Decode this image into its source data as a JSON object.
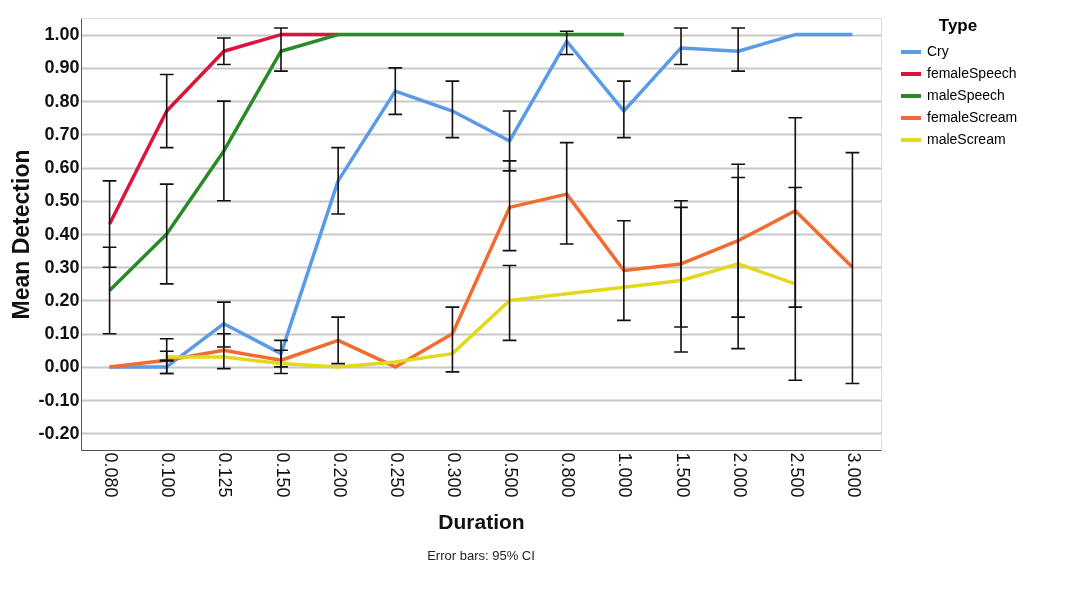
{
  "chart_data": {
    "type": "line",
    "xlabel": "Duration",
    "ylabel": "Mean Detection",
    "legend_title": "Type",
    "legend": "top right",
    "grid": "y",
    "categories": [
      "0.080",
      "0.100",
      "0.125",
      "0.150",
      "0.200",
      "0.250",
      "0.300",
      "0.500",
      "0.800",
      "1.000",
      "1.500",
      "2.000",
      "2.500",
      "3.000"
    ],
    "ylim": [
      -0.25,
      1.05
    ],
    "yticks": [
      {
        "value": -0.2,
        "label": "-0.20"
      },
      {
        "value": -0.1,
        "label": "-0.10"
      },
      {
        "value": 0,
        "label": "0.00"
      },
      {
        "value": 0.1,
        "label": "0.10"
      },
      {
        "value": 0.2,
        "label": "0.20"
      },
      {
        "value": 0.3,
        "label": "0.30"
      },
      {
        "value": 0.4,
        "label": "0.40"
      },
      {
        "value": 0.5,
        "label": "0.50"
      },
      {
        "value": 0.6,
        "label": "0.60"
      },
      {
        "value": 0.7,
        "label": "0.70"
      },
      {
        "value": 0.8,
        "label": "0.80"
      },
      {
        "value": 0.9,
        "label": "0.90"
      },
      {
        "value": 1,
        "label": "1.00"
      }
    ],
    "series": [
      {
        "name": "Cry",
        "color": "#5b9be6",
        "values": [
          0.0,
          0.0,
          0.13,
          0.04,
          0.56,
          0.83,
          0.77,
          0.68,
          0.98,
          0.77,
          0.96,
          0.95,
          1.0,
          1.0
        ],
        "errors": [
          null,
          [
            -0.02,
            0.02
          ],
          [
            0.06,
            0.195
          ],
          [
            -0.02,
            0.08
          ],
          [
            0.46,
            0.66
          ],
          [
            0.76,
            0.9
          ],
          [
            0.69,
            0.86
          ],
          [
            0.59,
            0.77
          ],
          [
            0.94,
            1.01
          ],
          [
            0.69,
            0.86
          ],
          [
            0.91,
            1.02
          ],
          [
            0.89,
            1.02
          ],
          null,
          null
        ]
      },
      {
        "name": "femaleSpeech",
        "color": "#dc143c",
        "values": [
          0.43,
          0.77,
          0.95,
          1.0,
          1.0,
          null,
          null,
          null,
          null,
          null,
          null,
          null,
          null,
          null
        ],
        "errors": [
          [
            0.3,
            0.56
          ],
          [
            0.66,
            0.88
          ],
          [
            0.91,
            0.99
          ],
          null,
          null,
          null,
          null,
          null,
          null,
          null,
          null,
          null,
          null,
          null
        ]
      },
      {
        "name": "maleSpeech",
        "color": "#2a8a2a",
        "values": [
          0.23,
          0.4,
          0.65,
          0.95,
          1.0,
          1.0,
          1.0,
          1.0,
          1.0,
          1.0,
          null,
          null,
          null,
          null
        ],
        "errors": [
          [
            0.1,
            0.36
          ],
          [
            0.25,
            0.55
          ],
          [
            0.5,
            0.8
          ],
          [
            0.89,
            1.02
          ],
          null,
          null,
          null,
          null,
          null,
          null,
          null,
          null,
          null,
          null
        ]
      },
      {
        "name": "femaleScream",
        "color": "#f26b30",
        "values": [
          0.0,
          0.02,
          0.05,
          0.02,
          0.08,
          0.0,
          0.1,
          0.48,
          0.52,
          0.29,
          0.31,
          0.38,
          0.47,
          0.3
        ],
        "errors": [
          null,
          [
            -0.02,
            0.085
          ],
          [
            -0.005,
            0.1
          ],
          [
            0.0,
            0.05
          ],
          [
            0.01,
            0.15
          ],
          null,
          [
            -0.015,
            0.18
          ],
          [
            0.35,
            0.62
          ],
          [
            0.37,
            0.675
          ],
          [
            0.14,
            0.44
          ],
          [
            0.12,
            0.5
          ],
          [
            0.15,
            0.61
          ],
          [
            0.18,
            0.75
          ],
          [
            -0.05,
            0.645
          ]
        ]
      },
      {
        "name": "maleScream",
        "color": "#e3d91c",
        "values": [
          null,
          0.03,
          0.03,
          0.01,
          0.0,
          0.015,
          0.04,
          0.2,
          0.22,
          0.24,
          0.26,
          0.31,
          0.25,
          null
        ],
        "errors": [
          null,
          [
            0.018,
            0.047
          ],
          null,
          null,
          null,
          null,
          null,
          [
            0.08,
            0.305
          ],
          null,
          null,
          [
            0.045,
            0.48
          ],
          [
            0.055,
            0.57
          ],
          [
            -0.04,
            0.54
          ],
          null
        ]
      }
    ],
    "annotations": [
      "Error bars: 95% CI"
    ]
  }
}
